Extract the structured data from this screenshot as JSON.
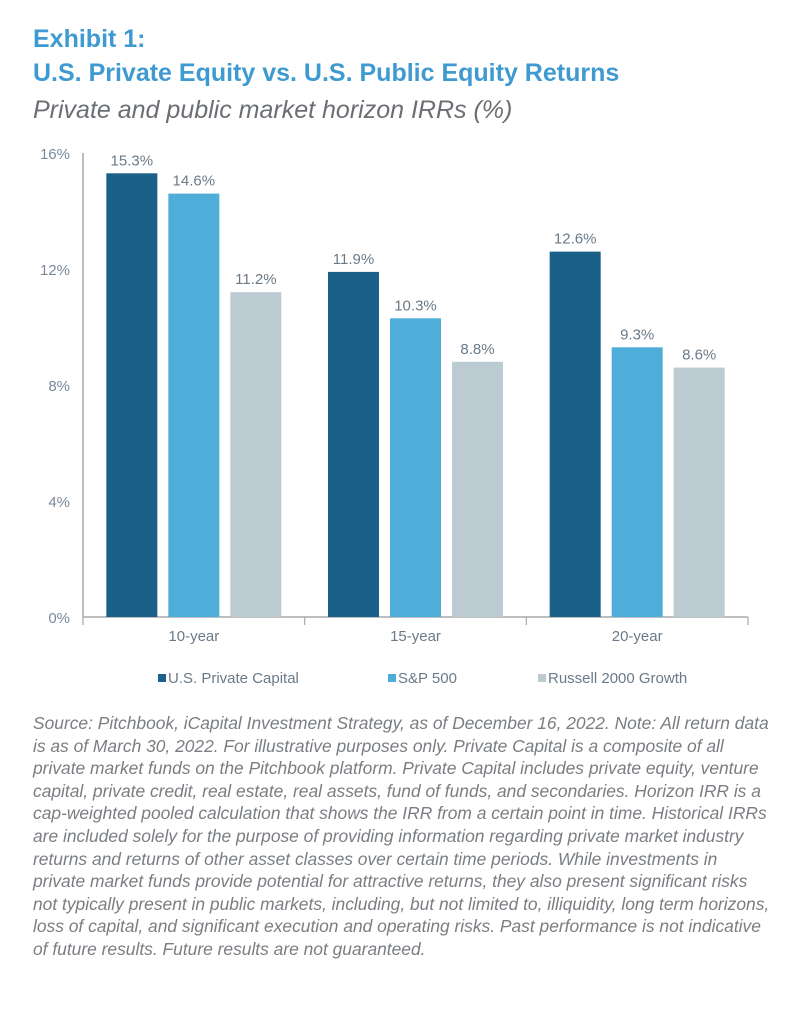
{
  "header": {
    "exhibit": "Exhibit 1:",
    "title": "U.S. Private Equity vs. U.S. Public Equity Returns",
    "subtitle": "Private and public market horizon IRRs (%)"
  },
  "chart_data": {
    "type": "bar",
    "categories": [
      "10-year",
      "15-year",
      "20-year"
    ],
    "series": [
      {
        "name": "U.S. Private Capital",
        "values": [
          15.3,
          11.9,
          12.6
        ],
        "color": "#1b6089"
      },
      {
        "name": "S&P 500",
        "values": [
          14.6,
          10.3,
          9.3
        ],
        "color": "#4eaed9"
      },
      {
        "name": "Russell 2000 Growth",
        "values": [
          11.2,
          8.8,
          8.6
        ],
        "color": "#bccbd1"
      }
    ],
    "ylim": [
      0,
      16
    ],
    "yticks": [
      "0%",
      "4%",
      "8%",
      "12%",
      "16%"
    ],
    "ytick_values": [
      0,
      4,
      8,
      12,
      16
    ],
    "grid": false,
    "legend": "bottom"
  },
  "footnote": "Source: Pitchbook, iCapital Investment Strategy, as of December 16, 2022. Note: All return data is as of March 30, 2022. For illustrative purposes only. Private Capital is a composite of all private market funds on the Pitchbook platform. Private Capital includes private equity, venture capital, private credit, real estate, real assets, fund of funds, and secondaries. Horizon IRR is a cap-weighted pooled calculation that shows the IRR from a certain point in time. Historical IRRs are included solely for the purpose of providing information regarding private market industry returns and returns of other asset classes over certain time periods. While investments in private market funds provide potential for attractive returns, they also present significant risks not typically present in public markets, including, but not limited to, illiquidity, long term horizons, loss of capital, and significant execution and operating risks. Past performance is not indicative of future results. Future results are not guaranteed."
}
